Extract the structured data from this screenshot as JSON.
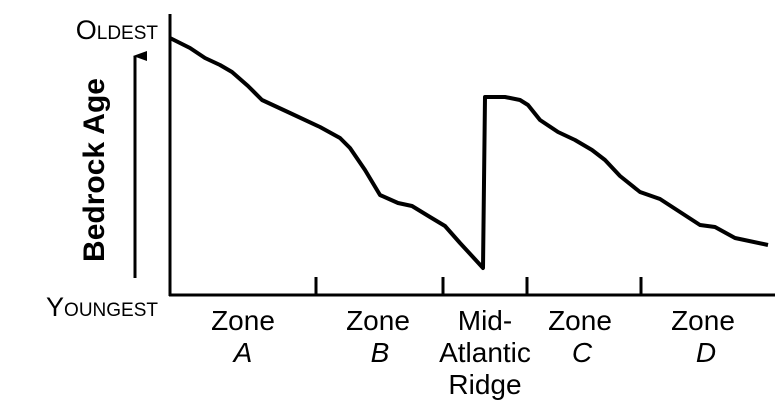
{
  "axis": {
    "top": "Oldest",
    "bottom": "Youngest",
    "title": "Bedrock Age"
  },
  "zones": [
    {
      "name": "Zone",
      "letter": "A"
    },
    {
      "name": "Zone",
      "letter": "B"
    },
    {
      "name": "Zone",
      "letter": "C"
    },
    {
      "name": "Zone",
      "letter": "D"
    }
  ],
  "ridge": {
    "lines": [
      "Mid-",
      "Atlantic",
      "Ridge"
    ]
  }
}
